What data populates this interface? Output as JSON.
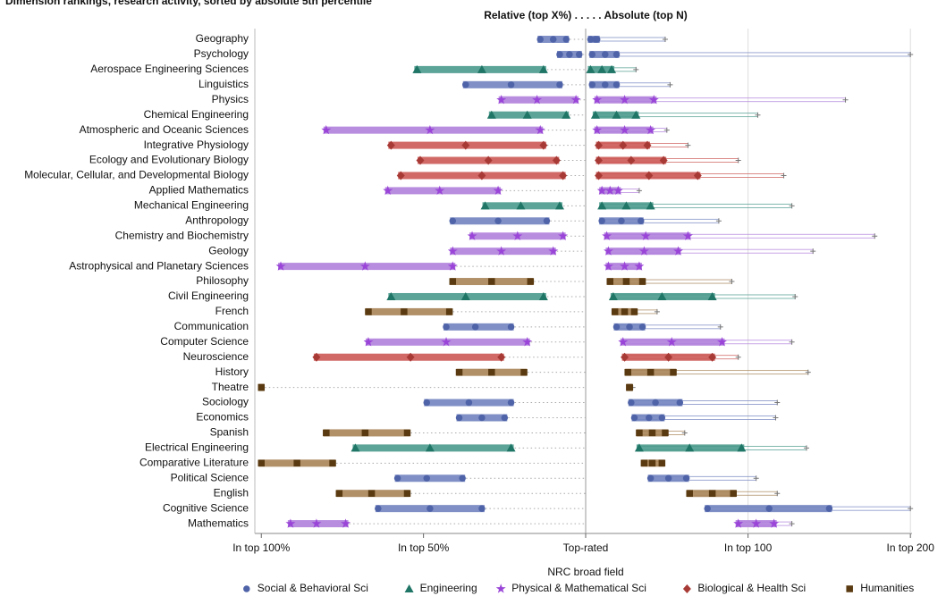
{
  "chart_data": {
    "type": "range-dot",
    "title": "Dimension rankings, research activity, sorted by absolute 5th percentile",
    "subtitle": "Relative (top X%) . . . . . Absolute (top N)",
    "legend_title": "NRC broad field",
    "relative_xlim": [
      102,
      0
    ],
    "relative_xticks": [
      {
        "value": 100,
        "label": "In top 100%"
      },
      {
        "value": 50,
        "label": "In top 50%"
      },
      {
        "value": 0,
        "label": "Top-rated"
      }
    ],
    "absolute_xlim": [
      0,
      201
    ],
    "absolute_xticks": [
      {
        "value": 100,
        "label": "In top 100"
      },
      {
        "value": 200,
        "label": "In top 200"
      }
    ],
    "series": [
      {
        "name": "Social & Behavioral Sci",
        "color": "#4f63a8",
        "bar_color": "#7284c0",
        "marker": "circle"
      },
      {
        "name": "Engineering",
        "color": "#1f7566",
        "bar_color": "#4a9a8c",
        "marker": "triangle"
      },
      {
        "name": "Physical & Mathematical Sci",
        "color": "#9a45d8",
        "bar_color": "#b07fdc",
        "marker": "star"
      },
      {
        "name": "Biological & Health Sci",
        "color": "#a83a36",
        "bar_color": "#cc5a56",
        "marker": "diamond"
      },
      {
        "name": "Humanities",
        "color": "#5a3a10",
        "bar_color": "#a88458",
        "marker": "square"
      }
    ],
    "rows": [
      {
        "category": "Geography",
        "field": "Social & Behavioral Sci",
        "relative": [
          14,
          10,
          6
        ],
        "absolute": [
          3,
          6,
          7
        ],
        "absolute_max": 49
      },
      {
        "category": "Psychology",
        "field": "Social & Behavioral Sci",
        "relative": [
          8,
          5,
          2
        ],
        "absolute": [
          4,
          12,
          19
        ],
        "absolute_max": 200
      },
      {
        "category": "Aerospace Engineering Sciences",
        "field": "Engineering",
        "relative": [
          52,
          32,
          13
        ],
        "absolute": [
          3,
          10,
          16
        ],
        "absolute_max": 31
      },
      {
        "category": "Linguistics",
        "field": "Social & Behavioral Sci",
        "relative": [
          37,
          23,
          8
        ],
        "absolute": [
          4,
          12,
          19
        ],
        "absolute_max": 52
      },
      {
        "category": "Physics",
        "field": "Physical & Mathematical Sci",
        "relative": [
          26,
          15,
          3
        ],
        "absolute": [
          7,
          24,
          42
        ],
        "absolute_max": 160
      },
      {
        "category": "Chemical Engineering",
        "field": "Engineering",
        "relative": [
          29,
          18,
          6
        ],
        "absolute": [
          6,
          19,
          31
        ],
        "absolute_max": 106
      },
      {
        "category": "Atmospheric and Oceanic Sciences",
        "field": "Physical & Mathematical Sci",
        "relative": [
          80,
          48,
          14
        ],
        "absolute": [
          7,
          24,
          40
        ],
        "absolute_max": 50
      },
      {
        "category": "Integrative Physiology",
        "field": "Biological & Health Sci",
        "relative": [
          60,
          37,
          13
        ],
        "absolute": [
          8,
          23,
          38
        ],
        "absolute_max": 63
      },
      {
        "category": "Ecology and Evolutionary Biology",
        "field": "Biological & Health Sci",
        "relative": [
          51,
          30,
          9
        ],
        "absolute": [
          8,
          28,
          48
        ],
        "absolute_max": 94
      },
      {
        "category": "Molecular, Cellular, and Developmental Biology",
        "field": "Biological & Health Sci",
        "relative": [
          57,
          32,
          7
        ],
        "absolute": [
          8,
          39,
          69
        ],
        "absolute_max": 122
      },
      {
        "category": "Applied Mathematics",
        "field": "Physical & Mathematical Sci",
        "relative": [
          61,
          45,
          27
        ],
        "absolute": [
          10,
          15,
          20
        ],
        "absolute_max": 33
      },
      {
        "category": "Mechanical Engineering",
        "field": "Engineering",
        "relative": [
          31,
          20,
          8
        ],
        "absolute": [
          10,
          25,
          40
        ],
        "absolute_max": 127
      },
      {
        "category": "Anthropology",
        "field": "Social & Behavioral Sci",
        "relative": [
          41,
          27,
          12
        ],
        "absolute": [
          10,
          22,
          34
        ],
        "absolute_max": 82
      },
      {
        "category": "Chemistry and Biochemistry",
        "field": "Physical & Mathematical Sci",
        "relative": [
          35,
          21,
          7
        ],
        "absolute": [
          13,
          37,
          63
        ],
        "absolute_max": 178
      },
      {
        "category": "Geology",
        "field": "Physical & Mathematical Sci",
        "relative": [
          41,
          26,
          10
        ],
        "absolute": [
          14,
          36,
          57
        ],
        "absolute_max": 140
      },
      {
        "category": "Astrophysical and Planetary Sciences",
        "field": "Physical & Mathematical Sci",
        "relative": [
          94,
          68,
          41
        ],
        "absolute": [
          14,
          24,
          33
        ],
        "absolute_max": 33
      },
      {
        "category": "Philosophy",
        "field": "Humanities",
        "relative": [
          41,
          29,
          17
        ],
        "absolute": [
          15,
          25,
          35
        ],
        "absolute_max": 90
      },
      {
        "category": "Civil Engineering",
        "field": "Engineering",
        "relative": [
          60,
          37,
          13
        ],
        "absolute": [
          17,
          47,
          78
        ],
        "absolute_max": 129
      },
      {
        "category": "French",
        "field": "Humanities",
        "relative": [
          67,
          56,
          42
        ],
        "absolute": [
          18,
          24,
          30
        ],
        "absolute_max": 44
      },
      {
        "category": "Communication",
        "field": "Social & Behavioral Sci",
        "relative": [
          43,
          34,
          23
        ],
        "absolute": [
          19,
          27,
          35
        ],
        "absolute_max": 83
      },
      {
        "category": "Computer Science",
        "field": "Physical & Mathematical Sci",
        "relative": [
          67,
          43,
          18
        ],
        "absolute": [
          23,
          53,
          84
        ],
        "absolute_max": 127
      },
      {
        "category": "Neuroscience",
        "field": "Biological & Health Sci",
        "relative": [
          83,
          54,
          26
        ],
        "absolute": [
          24,
          51,
          78
        ],
        "absolute_max": 94
      },
      {
        "category": "History",
        "field": "Humanities",
        "relative": [
          39,
          29,
          19
        ],
        "absolute": [
          26,
          40,
          54
        ],
        "absolute_max": 137
      },
      {
        "category": "Theatre",
        "field": "Humanities",
        "relative": [
          100,
          100,
          100
        ],
        "absolute": [
          27,
          27,
          27
        ],
        "absolute_max": 29
      },
      {
        "category": "Sociology",
        "field": "Social & Behavioral Sci",
        "relative": [
          49,
          36,
          23
        ],
        "absolute": [
          28,
          43,
          58
        ],
        "absolute_max": 118
      },
      {
        "category": "Economics",
        "field": "Social & Behavioral Sci",
        "relative": [
          39,
          32,
          25
        ],
        "absolute": [
          30,
          39,
          47
        ],
        "absolute_max": 117
      },
      {
        "category": "Spanish",
        "field": "Humanities",
        "relative": [
          80,
          68,
          55
        ],
        "absolute": [
          33,
          41,
          49
        ],
        "absolute_max": 61
      },
      {
        "category": "Electrical Engineering",
        "field": "Engineering",
        "relative": [
          71,
          48,
          23
        ],
        "absolute": [
          33,
          64,
          96
        ],
        "absolute_max": 136
      },
      {
        "category": "Comparative Literature",
        "field": "Humanities",
        "relative": [
          100,
          89,
          78
        ],
        "absolute": [
          36,
          41,
          47
        ],
        "absolute_max": 47
      },
      {
        "category": "Political Science",
        "field": "Social & Behavioral Sci",
        "relative": [
          58,
          49,
          38
        ],
        "absolute": [
          40,
          51,
          62
        ],
        "absolute_max": 105
      },
      {
        "category": "English",
        "field": "Humanities",
        "relative": [
          76,
          66,
          55
        ],
        "absolute": [
          64,
          78,
          91
        ],
        "absolute_max": 118
      },
      {
        "category": "Cognitive Science",
        "field": "Social & Behavioral Sci",
        "relative": [
          64,
          48,
          32
        ],
        "absolute": [
          75,
          113,
          150
        ],
        "absolute_max": 200
      },
      {
        "category": "Mathematics",
        "field": "Physical & Mathematical Sci",
        "relative": [
          91,
          83,
          74
        ],
        "absolute": [
          94,
          105,
          116
        ],
        "absolute_max": 127
      }
    ]
  }
}
